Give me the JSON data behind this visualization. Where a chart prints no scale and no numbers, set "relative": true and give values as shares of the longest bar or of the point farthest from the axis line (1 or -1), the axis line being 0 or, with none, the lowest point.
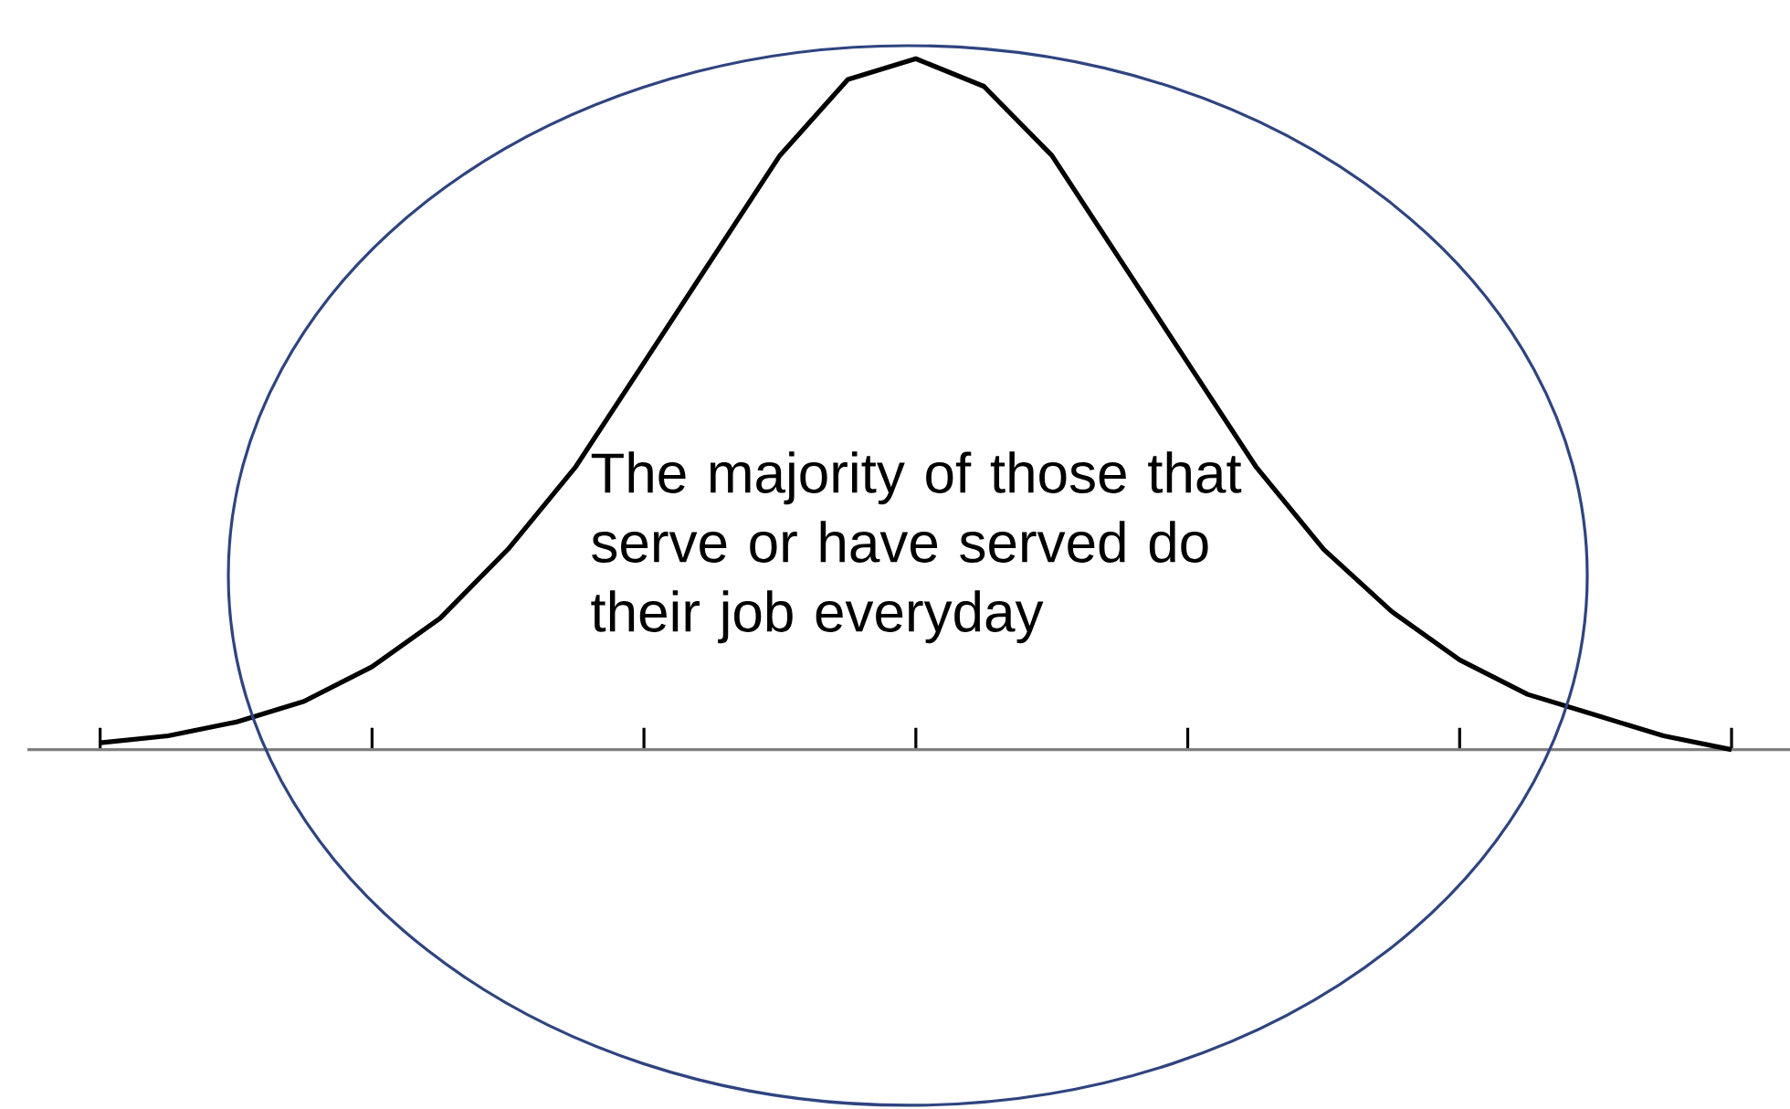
{
  "chart_data": {
    "type": "line",
    "relative": true,
    "categories": [
      null,
      null,
      null,
      null,
      null,
      null,
      null,
      null,
      null,
      null,
      null,
      null,
      null,
      null,
      null,
      null,
      null,
      null,
      null,
      null,
      null,
      null,
      null,
      null,
      null
    ],
    "series": [
      {
        "color": "#000000",
        "values": [
          0.01,
          0.02,
          0.04,
          0.07,
          0.12,
          0.19,
          0.29,
          0.41,
          0.56,
          0.71,
          0.86,
          0.97,
          1.0,
          0.96,
          0.86,
          0.71,
          0.56,
          0.41,
          0.29,
          0.2,
          0.13,
          0.08,
          0.05,
          0.02,
          0
        ]
      }
    ],
    "annotations": [
      "The majority of those that serve or have served do their job everyday"
    ]
  }
}
